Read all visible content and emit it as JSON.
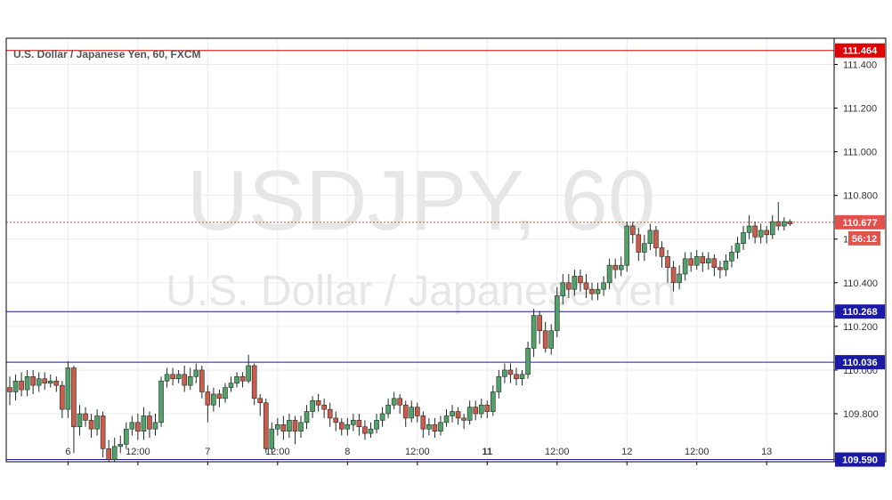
{
  "chart_data": {
    "type": "candlestick",
    "title": "U.S. Dollar / Japanese Yen, 60, FXCM",
    "watermark_symbol": "USDJPY, 60",
    "watermark_name": "U.S. Dollar / Japanese Yen",
    "ylim": [
      109.58,
      111.52
    ],
    "y_ticks": [
      "111.400",
      "111.200",
      "111.000",
      "110.800",
      "110.600",
      "110.400",
      "110.200",
      "110.000",
      "109.800"
    ],
    "y_tick_values": [
      111.4,
      111.2,
      111.0,
      110.8,
      110.6,
      110.4,
      110.2,
      110.0,
      109.8
    ],
    "x_ticks": [
      {
        "label": "6",
        "index": 10,
        "bold": false
      },
      {
        "label": "12:00",
        "index": 22,
        "bold": false
      },
      {
        "label": "7",
        "index": 34,
        "bold": false
      },
      {
        "label": "12:00",
        "index": 46,
        "bold": false
      },
      {
        "label": "8",
        "index": 58,
        "bold": false
      },
      {
        "label": "12:00",
        "index": 70,
        "bold": false
      },
      {
        "label": "11",
        "index": 82,
        "bold": true
      },
      {
        "label": "12:00",
        "index": 94,
        "bold": false
      },
      {
        "label": "12",
        "index": 106,
        "bold": false
      },
      {
        "label": "12:00",
        "index": 118,
        "bold": false
      },
      {
        "label": "13",
        "index": 130,
        "bold": false
      }
    ],
    "horizontal_levels": [
      {
        "value": 111.464,
        "label": "111.464",
        "color": "#e00000"
      },
      {
        "value": 110.268,
        "label": "110.268",
        "color": "#1a1aa6"
      },
      {
        "value": 110.036,
        "label": "110.036",
        "color": "#1a1aa6"
      },
      {
        "value": 109.59,
        "label": "109.590",
        "color": "#1a1aa6"
      }
    ],
    "current_price": {
      "value": 110.677,
      "label": "110.677",
      "countdown": "56:12",
      "color": "#e0524a"
    },
    "candles": [
      [
        109.92,
        109.9,
        109.97,
        109.84
      ],
      [
        109.9,
        109.95,
        109.98,
        109.86
      ],
      [
        109.95,
        109.91,
        109.99,
        109.88
      ],
      [
        109.91,
        109.97,
        110.0,
        109.88
      ],
      [
        109.97,
        109.93,
        110.0,
        109.89
      ],
      [
        109.93,
        109.96,
        109.99,
        109.9
      ],
      [
        109.96,
        109.94,
        109.99,
        109.91
      ],
      [
        109.94,
        109.95,
        109.98,
        109.92
      ],
      [
        109.95,
        109.93,
        109.97,
        109.9
      ],
      [
        109.93,
        109.82,
        109.95,
        109.78
      ],
      [
        109.82,
        110.01,
        110.04,
        109.78
      ],
      [
        110.01,
        109.74,
        110.02,
        109.62
      ],
      [
        109.74,
        109.8,
        109.84,
        109.7
      ],
      [
        109.8,
        109.77,
        109.83,
        109.74
      ],
      [
        109.77,
        109.73,
        109.8,
        109.69
      ],
      [
        109.73,
        109.79,
        109.82,
        109.7
      ],
      [
        109.79,
        109.64,
        109.81,
        109.6
      ],
      [
        109.64,
        109.59,
        109.68,
        109.58
      ],
      [
        109.59,
        109.65,
        109.69,
        109.58
      ],
      [
        109.65,
        109.66,
        109.7,
        109.62
      ],
      [
        109.66,
        109.73,
        109.76,
        109.64
      ],
      [
        109.73,
        109.76,
        109.79,
        109.7
      ],
      [
        109.76,
        109.72,
        109.8,
        109.68
      ],
      [
        109.72,
        109.79,
        109.83,
        109.68
      ],
      [
        109.79,
        109.73,
        109.81,
        109.69
      ],
      [
        109.73,
        109.76,
        109.8,
        109.7
      ],
      [
        109.76,
        109.95,
        109.97,
        109.74
      ],
      [
        109.95,
        109.98,
        110.01,
        109.92
      ],
      [
        109.98,
        109.96,
        110.01,
        109.93
      ],
      [
        109.96,
        109.98,
        110.0,
        109.94
      ],
      [
        109.98,
        109.93,
        110.02,
        109.9
      ],
      [
        109.93,
        109.97,
        110.01,
        109.91
      ],
      [
        109.97,
        110.0,
        110.03,
        109.94
      ],
      [
        110.0,
        109.9,
        110.02,
        109.87
      ],
      [
        109.9,
        109.84,
        109.93,
        109.76
      ],
      [
        109.84,
        109.89,
        109.92,
        109.81
      ],
      [
        109.89,
        109.87,
        109.91,
        109.83
      ],
      [
        109.87,
        109.92,
        109.94,
        109.85
      ],
      [
        109.92,
        109.94,
        109.97,
        109.9
      ],
      [
        109.94,
        109.97,
        109.99,
        109.92
      ],
      [
        109.97,
        109.95,
        109.99,
        109.92
      ],
      [
        109.95,
        110.02,
        110.07,
        109.94
      ],
      [
        110.02,
        109.87,
        110.03,
        109.84
      ],
      [
        109.87,
        109.85,
        109.89,
        109.79
      ],
      [
        109.85,
        109.64,
        109.87,
        109.62
      ],
      [
        109.64,
        109.73,
        109.76,
        109.62
      ],
      [
        109.73,
        109.75,
        109.78,
        109.7
      ],
      [
        109.75,
        109.72,
        109.79,
        109.68
      ],
      [
        109.72,
        109.77,
        109.8,
        109.69
      ],
      [
        109.77,
        109.72,
        109.79,
        109.66
      ],
      [
        109.72,
        109.76,
        109.79,
        109.69
      ],
      [
        109.76,
        109.81,
        109.84,
        109.73
      ],
      [
        109.81,
        109.86,
        109.88,
        109.78
      ],
      [
        109.86,
        109.84,
        109.89,
        109.81
      ],
      [
        109.84,
        109.82,
        109.87,
        109.78
      ],
      [
        109.82,
        109.78,
        109.85,
        109.74
      ],
      [
        109.78,
        109.76,
        109.81,
        109.72
      ],
      [
        109.76,
        109.73,
        109.78,
        109.7
      ],
      [
        109.73,
        109.75,
        109.78,
        109.7
      ],
      [
        109.75,
        109.77,
        109.8,
        109.72
      ],
      [
        109.77,
        109.74,
        109.8,
        109.7
      ],
      [
        109.74,
        109.71,
        109.77,
        109.68
      ],
      [
        109.71,
        109.73,
        109.76,
        109.69
      ],
      [
        109.73,
        109.77,
        109.8,
        109.71
      ],
      [
        109.77,
        109.8,
        109.83,
        109.74
      ],
      [
        109.8,
        109.84,
        109.87,
        109.78
      ],
      [
        109.84,
        109.87,
        109.9,
        109.82
      ],
      [
        109.87,
        109.84,
        109.89,
        109.8
      ],
      [
        109.84,
        109.78,
        109.86,
        109.74
      ],
      [
        109.78,
        109.83,
        109.86,
        109.76
      ],
      [
        109.83,
        109.79,
        109.85,
        109.76
      ],
      [
        109.79,
        109.73,
        109.81,
        109.69
      ],
      [
        109.73,
        109.75,
        109.78,
        109.7
      ],
      [
        109.75,
        109.72,
        109.78,
        109.69
      ],
      [
        109.72,
        109.76,
        109.79,
        109.7
      ],
      [
        109.76,
        109.79,
        109.82,
        109.74
      ],
      [
        109.79,
        109.81,
        109.84,
        109.76
      ],
      [
        109.81,
        109.78,
        109.83,
        109.75
      ],
      [
        109.78,
        109.77,
        109.8,
        109.73
      ],
      [
        109.77,
        109.83,
        109.86,
        109.75
      ],
      [
        109.83,
        109.8,
        109.86,
        109.77
      ],
      [
        109.8,
        109.84,
        109.87,
        109.78
      ],
      [
        109.84,
        109.81,
        109.86,
        109.78
      ],
      [
        109.81,
        109.9,
        109.93,
        109.79
      ],
      [
        109.9,
        109.97,
        110.0,
        109.87
      ],
      [
        109.97,
        110.0,
        110.03,
        109.94
      ],
      [
        110.0,
        109.98,
        110.03,
        109.94
      ],
      [
        109.98,
        109.96,
        110.01,
        109.93
      ],
      [
        109.96,
        109.98,
        110.0,
        109.93
      ],
      [
        109.98,
        110.1,
        110.13,
        109.96
      ],
      [
        110.1,
        110.25,
        110.28,
        110.06
      ],
      [
        110.25,
        110.18,
        110.27,
        110.12
      ],
      [
        110.18,
        110.1,
        110.22,
        110.08
      ],
      [
        110.1,
        110.18,
        110.21,
        110.07
      ],
      [
        110.18,
        110.34,
        110.38,
        110.15
      ],
      [
        110.34,
        110.4,
        110.44,
        110.3
      ],
      [
        110.4,
        110.37,
        110.44,
        110.33
      ],
      [
        110.37,
        110.43,
        110.46,
        110.34
      ],
      [
        110.43,
        110.4,
        110.46,
        110.36
      ],
      [
        110.4,
        110.37,
        110.44,
        110.33
      ],
      [
        110.37,
        110.35,
        110.4,
        110.32
      ],
      [
        110.35,
        110.37,
        110.4,
        110.32
      ],
      [
        110.37,
        110.4,
        110.43,
        110.34
      ],
      [
        110.4,
        110.48,
        110.51,
        110.37
      ],
      [
        110.48,
        110.46,
        110.51,
        110.42
      ],
      [
        110.46,
        110.48,
        110.52,
        110.43
      ],
      [
        110.48,
        110.66,
        110.68,
        110.45
      ],
      [
        110.66,
        110.62,
        110.68,
        110.58
      ],
      [
        110.62,
        110.54,
        110.65,
        110.5
      ],
      [
        110.54,
        110.58,
        110.62,
        110.5
      ],
      [
        110.58,
        110.64,
        110.67,
        110.55
      ],
      [
        110.64,
        110.56,
        110.66,
        110.52
      ],
      [
        110.56,
        110.52,
        110.59,
        110.47
      ],
      [
        110.52,
        110.47,
        110.55,
        110.4
      ],
      [
        110.47,
        110.4,
        110.5,
        110.36
      ],
      [
        110.4,
        110.44,
        110.48,
        110.37
      ],
      [
        110.44,
        110.51,
        110.54,
        110.41
      ],
      [
        110.51,
        110.48,
        110.54,
        110.45
      ],
      [
        110.48,
        110.52,
        110.55,
        110.46
      ],
      [
        110.52,
        110.49,
        110.54,
        110.45
      ],
      [
        110.49,
        110.51,
        110.54,
        110.46
      ],
      [
        110.51,
        110.47,
        110.53,
        110.43
      ],
      [
        110.47,
        110.46,
        110.5,
        110.42
      ],
      [
        110.46,
        110.5,
        110.53,
        110.43
      ],
      [
        110.5,
        110.54,
        110.57,
        110.47
      ],
      [
        110.54,
        110.58,
        110.61,
        110.51
      ],
      [
        110.58,
        110.63,
        110.66,
        110.55
      ],
      [
        110.63,
        110.66,
        110.71,
        110.6
      ],
      [
        110.66,
        110.61,
        110.68,
        110.58
      ],
      [
        110.61,
        110.64,
        110.67,
        110.58
      ],
      [
        110.64,
        110.62,
        110.66,
        110.58
      ],
      [
        110.62,
        110.68,
        110.71,
        110.6
      ],
      [
        110.68,
        110.66,
        110.77,
        110.64
      ],
      [
        110.66,
        110.68,
        110.7,
        110.64
      ],
      [
        110.68,
        110.67,
        110.69,
        110.66
      ]
    ]
  }
}
